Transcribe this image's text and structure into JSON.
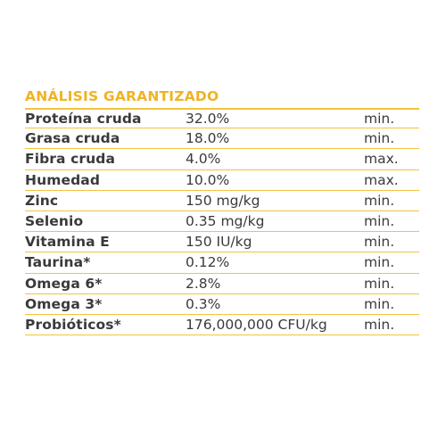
{
  "title": "ANÁLISIS GARANTIZADO",
  "colors": {
    "accent": "#f0b323",
    "rule": "#f2c43d",
    "text": "#3a3a3a"
  },
  "rows": [
    {
      "name": "Proteína cruda",
      "amount": "32.0%",
      "limit": "min."
    },
    {
      "name": "Grasa cruda",
      "amount": "18.0%",
      "limit": "min."
    },
    {
      "name": "Fibra cruda",
      "amount": "4.0%",
      "limit": "max."
    },
    {
      "name": "Humedad",
      "amount": "10.0%",
      "limit": "max."
    },
    {
      "name": "Zinc",
      "amount": "150 mg/kg",
      "limit": "min."
    },
    {
      "name": "Selenio",
      "amount": "0.35 mg/kg",
      "limit": "min."
    },
    {
      "name": "Vitamina E",
      "amount": "150 IU/kg",
      "limit": "min."
    },
    {
      "name": "Taurina*",
      "amount": "0.12%",
      "limit": "min."
    },
    {
      "name": "Omega 6*",
      "amount": "2.8%",
      "limit": "min."
    },
    {
      "name": "Omega 3*",
      "amount": "0.3%",
      "limit": "min."
    },
    {
      "name": "Probióticos*",
      "amount": "176,000,000 CFU/kg",
      "limit": "min."
    }
  ]
}
